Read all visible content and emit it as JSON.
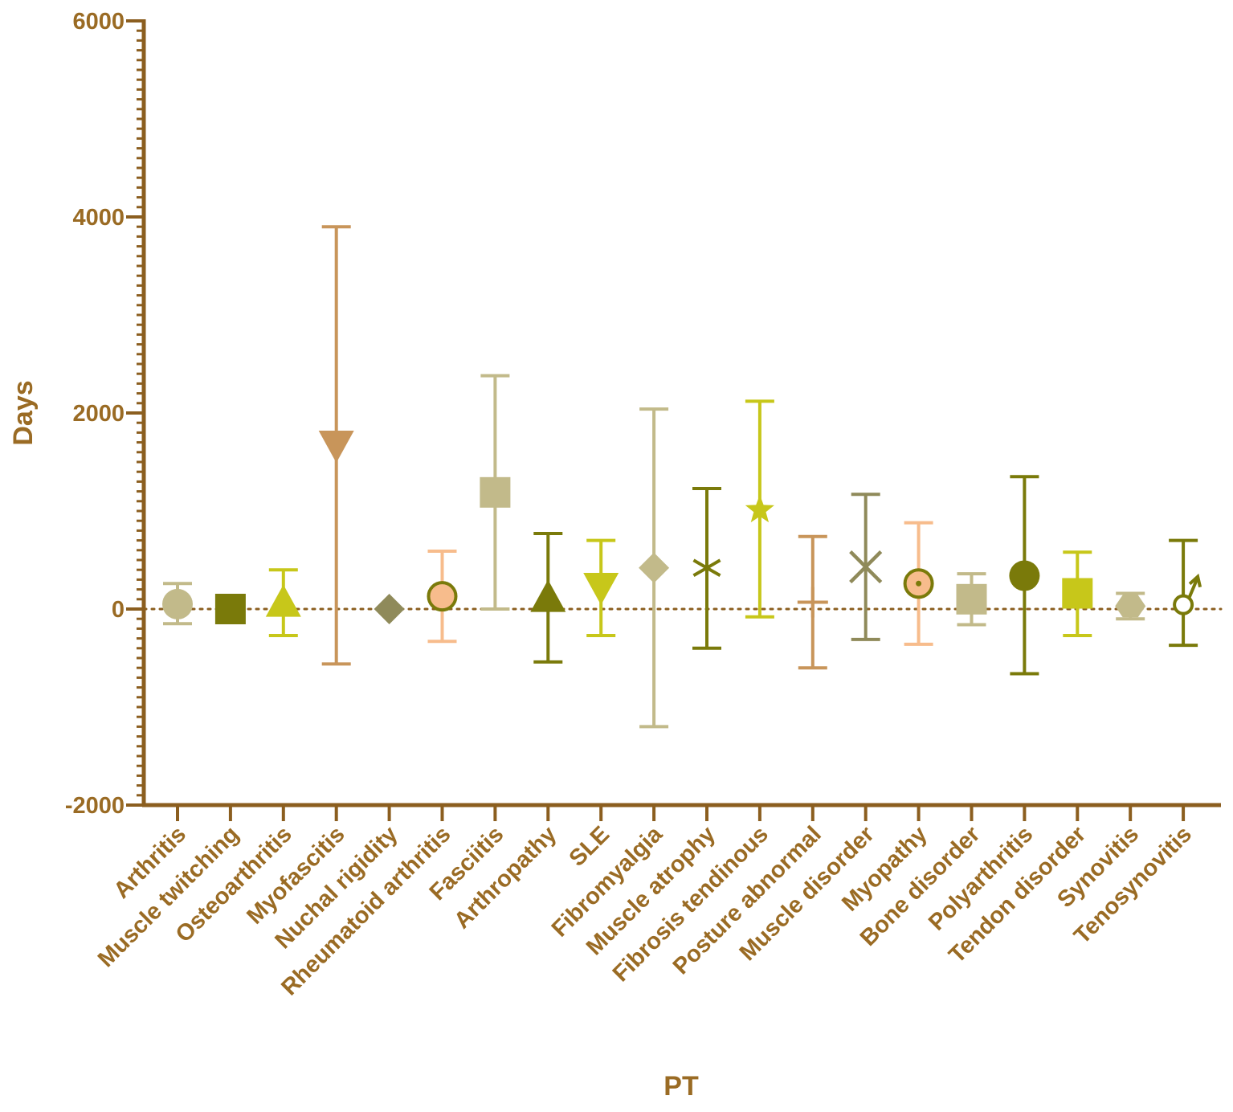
{
  "chart_data": {
    "type": "scatter",
    "xlabel": "PT",
    "ylabel": "Days",
    "ylim": [
      -2000,
      6000
    ],
    "yticks": [
      -2000,
      0,
      2000,
      4000,
      6000
    ],
    "yminor_step": 100,
    "zero_reference_line": "dotted",
    "grid": false,
    "legend": "none",
    "axis_color": "#8B5E1F",
    "label_color": "#9A6B24",
    "series": [
      {
        "category": "Arthritis",
        "mean": 50,
        "low": -150,
        "high": 260,
        "marker": "circle",
        "color": "#C2BA8A"
      },
      {
        "category": "Muscle twitching",
        "mean": 0,
        "low": 0,
        "high": 0,
        "marker": "square",
        "color": "#7A7A0A"
      },
      {
        "category": "Osteoarthritis",
        "mean": 60,
        "low": -270,
        "high": 400,
        "marker": "triangle-up",
        "color": "#C7C71A"
      },
      {
        "category": "Myofascitis",
        "mean": 1680,
        "low": -560,
        "high": 3900,
        "marker": "triangle-down",
        "color": "#C8955A"
      },
      {
        "category": "Nuchal rigidity",
        "mean": 0,
        "low": 0,
        "high": 0,
        "marker": "diamond",
        "color": "#8F8A5A"
      },
      {
        "category": "Rheumatoid arthritis",
        "mean": 130,
        "low": -330,
        "high": 590,
        "marker": "circle-ring",
        "color": "#F7BC8C",
        "edge": "#7A7A0A"
      },
      {
        "category": "Fasciitis",
        "mean": 1190,
        "low": 0,
        "high": 2380,
        "marker": "square",
        "color": "#C2BA8A"
      },
      {
        "category": "Arthropathy",
        "mean": 110,
        "low": -540,
        "high": 770,
        "marker": "triangle-up",
        "color": "#7A7A0A"
      },
      {
        "category": "SLE",
        "mean": 230,
        "low": -270,
        "high": 700,
        "marker": "triangle-down",
        "color": "#C7C71A"
      },
      {
        "category": "Fibromyalgia",
        "mean": 420,
        "low": -1200,
        "high": 2040,
        "marker": "diamond",
        "color": "#C2BA8A"
      },
      {
        "category": "Muscle atrophy",
        "mean": 420,
        "low": -400,
        "high": 1230,
        "marker": "asterisk",
        "color": "#7A7A0A"
      },
      {
        "category": "Fibrosis tendinous",
        "mean": 1010,
        "low": -80,
        "high": 2120,
        "marker": "star",
        "color": "#C7C71A"
      },
      {
        "category": "Posture abnormal",
        "mean": 70,
        "low": -600,
        "high": 740,
        "marker": "plus",
        "color": "#C8955A"
      },
      {
        "category": "Muscle disorder",
        "mean": 430,
        "low": -310,
        "high": 1170,
        "marker": "cross",
        "color": "#8F8A5A"
      },
      {
        "category": "Myopathy",
        "mean": 260,
        "low": -360,
        "high": 880,
        "marker": "circle-dot",
        "color": "#F7BC8C",
        "edge": "#7A7A0A"
      },
      {
        "category": "Bone disorder",
        "mean": 100,
        "low": -160,
        "high": 360,
        "marker": "square",
        "color": "#C2BA8A"
      },
      {
        "category": "Polyarthritis",
        "mean": 340,
        "low": -660,
        "high": 1350,
        "marker": "circle",
        "color": "#7A7A0A"
      },
      {
        "category": "Tendon disorder",
        "mean": 160,
        "low": -270,
        "high": 580,
        "marker": "square",
        "color": "#C7C71A"
      },
      {
        "category": "Synovitis",
        "mean": 30,
        "low": -100,
        "high": 160,
        "marker": "hexagon",
        "color": "#C2BA8A"
      },
      {
        "category": "Tenosynovitis",
        "mean": 60,
        "low": -370,
        "high": 700,
        "marker": "male-symbol",
        "color": "#7A7A0A"
      }
    ]
  }
}
